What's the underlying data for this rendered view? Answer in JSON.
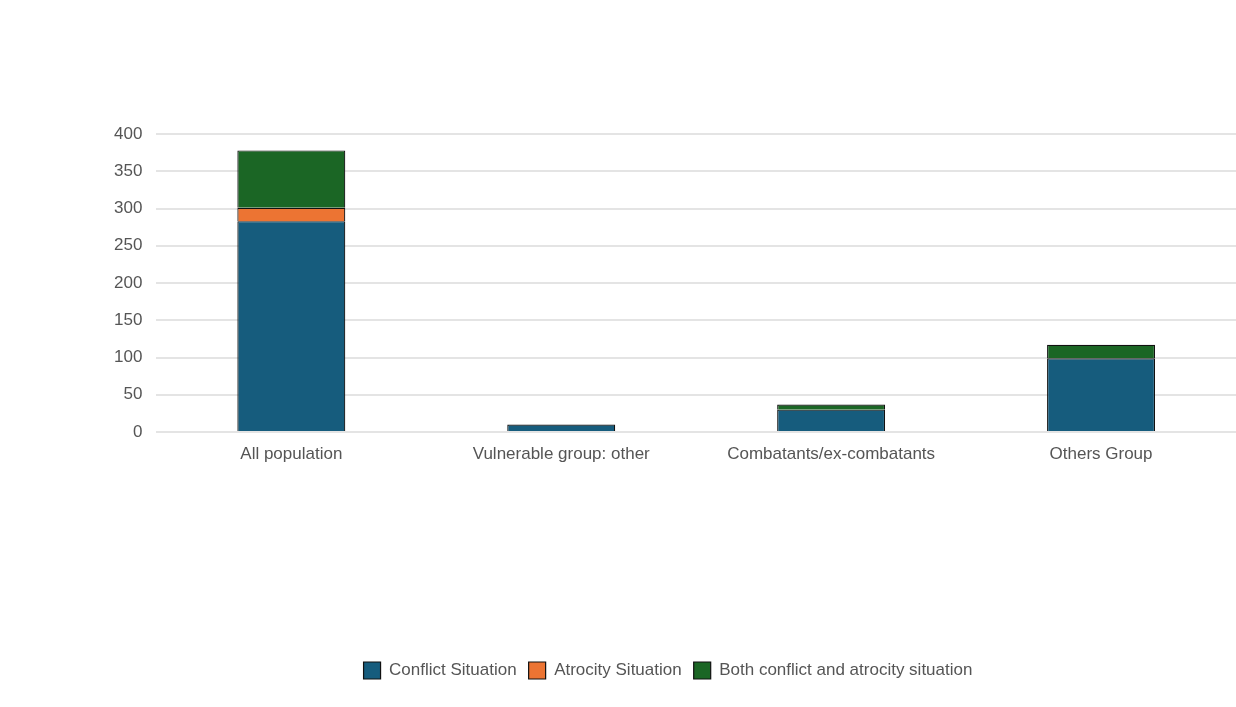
{
  "chart_data": {
    "type": "bar",
    "stacked": true,
    "categories": [
      "All population",
      "Vulnerable group: other",
      "Combatants/ex-combatants",
      "Others Group"
    ],
    "series": [
      {
        "name": "Conflict Situation",
        "color": "#165c7d",
        "values": [
          283,
          10,
          30,
          99
        ]
      },
      {
        "name": "Atrocity Situation",
        "color": "#ec7433",
        "values": [
          18,
          0,
          0,
          0
        ]
      },
      {
        "name": "Both conflict and atrocity situation",
        "color": "#1b6625",
        "values": [
          77,
          0,
          7,
          18
        ]
      }
    ],
    "ylim": [
      0,
      400
    ],
    "yticks": [
      0,
      50,
      100,
      150,
      200,
      250,
      300,
      350,
      400
    ],
    "grid": "y",
    "legend": "bottom"
  }
}
